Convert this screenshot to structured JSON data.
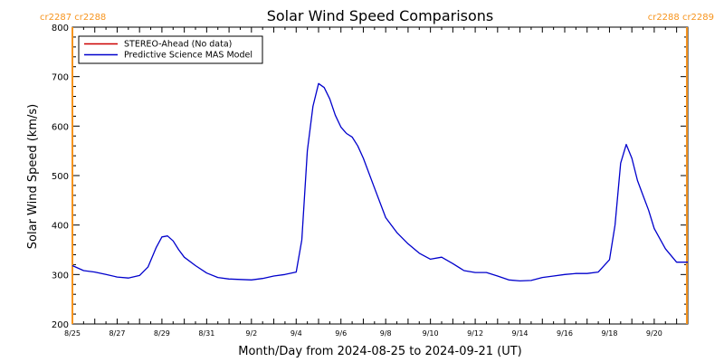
{
  "title": "Solar Wind Speed Comparisons",
  "xlabel": "Month/Day from 2024-08-25 to 2024-09-21 (UT)",
  "ylabel": "Solar Wind Speed (km/s)",
  "cr_labels": {
    "left": "cr2287 cr2288",
    "right": "cr2288 cr2289"
  },
  "colors": {
    "series_blue": "#0000cc",
    "series_red": "#cc0000",
    "cr_line": "#f7941d",
    "axis": "#000000"
  },
  "chart_data": {
    "type": "line",
    "title": "Solar Wind Speed Comparisons",
    "xlabel": "Month/Day from 2024-08-25 to 2024-09-21 (UT)",
    "ylabel": "Solar Wind Speed (km/s)",
    "xlim": [
      "2024-08-25",
      "2024-09-21 12:00"
    ],
    "ylim": [
      200,
      800
    ],
    "x_ticks": [
      "8/25",
      "8/27",
      "8/29",
      "8/31",
      "9/2",
      "9/4",
      "9/6",
      "9/8",
      "9/10",
      "9/12",
      "9/14",
      "9/16",
      "9/18",
      "9/20"
    ],
    "y_ticks": [
      200,
      300,
      400,
      500,
      600,
      700,
      800
    ],
    "grid": false,
    "legend_position": "top-left",
    "cr_boundaries": [
      "2024-08-25",
      "2024-09-21 11:00"
    ],
    "series": [
      {
        "name": "STEREO-Ahead (No data)",
        "color": "#cc0000",
        "x": [],
        "y": []
      },
      {
        "name": "Predictive Science MAS Model",
        "color": "#0000cc",
        "x": [
          "2024-08-25 00:00",
          "2024-08-25 12:00",
          "2024-08-26 00:00",
          "2024-08-26 12:00",
          "2024-08-27 00:00",
          "2024-08-27 12:00",
          "2024-08-28 00:00",
          "2024-08-28 09:00",
          "2024-08-28 18:00",
          "2024-08-29 00:00",
          "2024-08-29 06:00",
          "2024-08-29 12:00",
          "2024-08-29 18:00",
          "2024-08-30 00:00",
          "2024-08-30 12:00",
          "2024-08-31 00:00",
          "2024-08-31 12:00",
          "2024-09-01 00:00",
          "2024-09-01 12:00",
          "2024-09-02 00:00",
          "2024-09-02 12:00",
          "2024-09-03 00:00",
          "2024-09-03 12:00",
          "2024-09-04 00:00",
          "2024-09-04 06:00",
          "2024-09-04 12:00",
          "2024-09-04 18:00",
          "2024-09-05 00:00",
          "2024-09-05 06:00",
          "2024-09-05 12:00",
          "2024-09-05 18:00",
          "2024-09-06 00:00",
          "2024-09-06 06:00",
          "2024-09-06 12:00",
          "2024-09-06 18:00",
          "2024-09-07 00:00",
          "2024-09-07 12:00",
          "2024-09-08 00:00",
          "2024-09-08 12:00",
          "2024-09-09 00:00",
          "2024-09-09 12:00",
          "2024-09-10 00:00",
          "2024-09-10 12:00",
          "2024-09-11 00:00",
          "2024-09-11 12:00",
          "2024-09-12 00:00",
          "2024-09-12 12:00",
          "2024-09-13 00:00",
          "2024-09-13 12:00",
          "2024-09-14 00:00",
          "2024-09-14 12:00",
          "2024-09-15 00:00",
          "2024-09-15 12:00",
          "2024-09-16 00:00",
          "2024-09-16 12:00",
          "2024-09-17 00:00",
          "2024-09-17 12:00",
          "2024-09-18 00:00",
          "2024-09-18 06:00",
          "2024-09-18 12:00",
          "2024-09-18 18:00",
          "2024-09-19 00:00",
          "2024-09-19 06:00",
          "2024-09-19 12:00",
          "2024-09-19 18:00",
          "2024-09-20 00:00",
          "2024-09-20 12:00",
          "2024-09-21 00:00",
          "2024-09-21 12:00"
        ],
        "y": [
          318,
          308,
          305,
          300,
          295,
          293,
          298,
          315,
          355,
          376,
          378,
          368,
          350,
          335,
          318,
          303,
          294,
          291,
          290,
          289,
          292,
          297,
          300,
          305,
          370,
          550,
          640,
          686,
          678,
          655,
          622,
          598,
          585,
          578,
          560,
          535,
          475,
          415,
          385,
          362,
          343,
          331,
          335,
          322,
          308,
          304,
          304,
          297,
          289,
          287,
          288,
          294,
          297,
          300,
          302,
          302,
          305,
          330,
          400,
          525,
          563,
          535,
          490,
          460,
          430,
          393,
          352,
          325,
          325
        ]
      }
    ]
  }
}
